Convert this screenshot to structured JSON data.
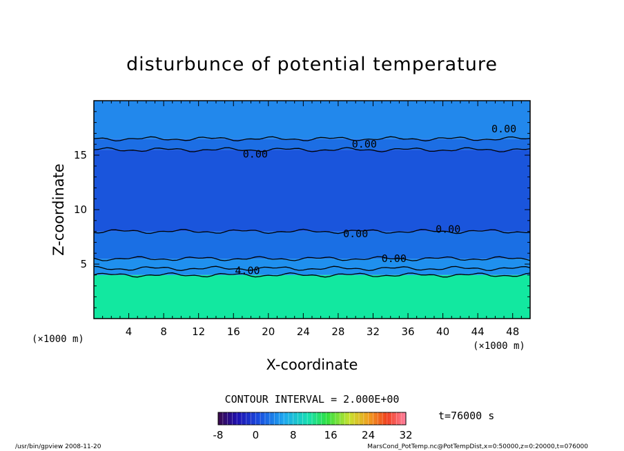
{
  "chart_data": {
    "type": "heatmap",
    "title": "disturbunce of potential temperature",
    "xlabel": "X-coordinate",
    "ylabel": "Z-coordinate",
    "x_unit": "(×1000 m)",
    "x_unit_right": "(×1000 m)",
    "x_ticks": [
      4,
      8,
      12,
      16,
      20,
      24,
      28,
      32,
      36,
      40,
      44,
      48
    ],
    "y_ticks": [
      5,
      10,
      15
    ],
    "xlim": [
      0,
      50
    ],
    "ylim": [
      0,
      20
    ],
    "contour_interval_text": "CONTOUR INTERVAL = 2.000E+00",
    "time_text": "t=76000 s",
    "colorbar_range": [
      -8,
      32
    ],
    "colorbar_ticks": [
      -8,
      0,
      8,
      16,
      24,
      32
    ],
    "contour_labels": [
      {
        "text": "0.00",
        "x": 47,
        "z": 17.4
      },
      {
        "text": "0.00",
        "x": 31,
        "z": 16.0
      },
      {
        "text": "0.00",
        "x": 18.5,
        "z": 15.1
      },
      {
        "text": "0.00",
        "x": 40.6,
        "z": 8.2
      },
      {
        "text": "0.00",
        "x": 30,
        "z": 7.8
      },
      {
        "text": "0.00",
        "x": 34.4,
        "z": 5.5
      },
      {
        "text": "4.00",
        "x": 17.6,
        "z": 4.4
      }
    ],
    "regions": [
      {
        "z_from": 0,
        "z_to": 4,
        "value": 12,
        "color": "#12e8a0"
      },
      {
        "z_from": 4,
        "z_to": 5.5,
        "value": 2,
        "color": "#1f90ee"
      },
      {
        "z_from": 5.5,
        "z_to": 8,
        "value": 0,
        "color": "#1a6fe4"
      },
      {
        "z_from": 8,
        "z_to": 15.5,
        "value": -2,
        "color": "#1a55dc"
      },
      {
        "z_from": 15.5,
        "z_to": 16.5,
        "value": 0,
        "color": "#1c6ee4"
      },
      {
        "z_from": 16.5,
        "z_to": 20,
        "value": 1,
        "color": "#2288ec"
      }
    ]
  },
  "footer": {
    "left": "/usr/bin/gpview   2008-11-20",
    "right": "MarsCond_PotTemp.nc@PotTempDist,x=0:50000,z=0:20000,t=076000"
  }
}
